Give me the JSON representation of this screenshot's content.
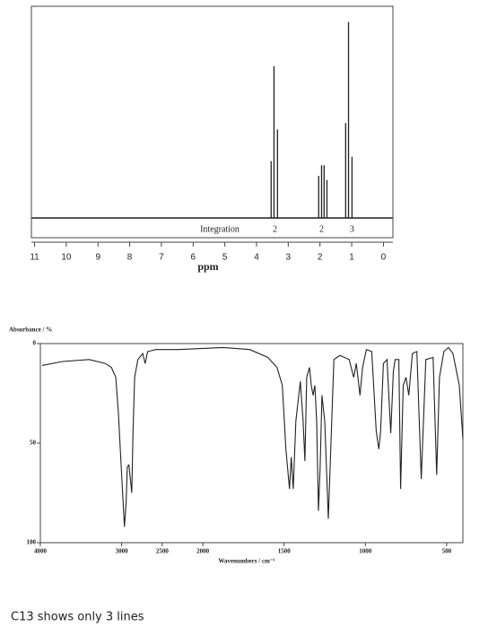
{
  "chart_data": [
    {
      "type": "stick",
      "xlabel": "ppm",
      "integration_label": "Integration",
      "x": [
        3.54,
        3.45,
        3.34,
        2.04,
        1.95,
        1.87,
        1.78,
        1.19,
        1.1,
        0.99
      ],
      "values": [
        27,
        72,
        42,
        20,
        25,
        25,
        18,
        45,
        93,
        29
      ],
      "integrals": [
        {
          "x": 3.42,
          "value": 2
        },
        {
          "x": 1.95,
          "value": 2
        },
        {
          "x": 0.99,
          "value": 3
        }
      ],
      "xlim": [
        11.1,
        -0.3
      ],
      "xticks": [
        11,
        10,
        9,
        8,
        7,
        6,
        5,
        4,
        3,
        2,
        1,
        0
      ],
      "ylim": [
        0,
        100
      ],
      "color": "#222222"
    },
    {
      "type": "line",
      "ylabel": "Absorbance / %",
      "xlabel": "Wavenumbers / cm⁻¹",
      "x": [
        3978,
        3727,
        3399,
        3202,
        3126,
        3071,
        3040,
        3000,
        2965,
        2945,
        2930,
        2910,
        2875,
        2860,
        2840,
        2800,
        2740,
        2710,
        2680,
        2580,
        2300,
        1878,
        1711,
        1600,
        1544,
        1511,
        1489,
        1467,
        1456,
        1444,
        1428,
        1400,
        1383,
        1372,
        1361,
        1344,
        1333,
        1322,
        1311,
        1300,
        1289,
        1278,
        1267,
        1250,
        1228,
        1211,
        1194,
        1156,
        1100,
        1072,
        1056,
        1033,
        1017,
        994,
        961,
        933,
        917,
        906,
        889,
        867,
        844,
        828,
        817,
        794,
        783,
        767,
        750,
        733,
        711,
        683,
        656,
        628,
        583,
        561,
        544,
        517,
        489,
        461,
        422,
        400
      ],
      "values": [
        11,
        9,
        8,
        10,
        12,
        17,
        35,
        66,
        92,
        80,
        62,
        61,
        75,
        44,
        17,
        8,
        5,
        10,
        4,
        3,
        3,
        2,
        3,
        7,
        12,
        21,
        53,
        73,
        57,
        73,
        39,
        19,
        39,
        59,
        17,
        12,
        21,
        26,
        21,
        39,
        84,
        62,
        26,
        39,
        88,
        48,
        8,
        6,
        8,
        17,
        10,
        26,
        12,
        3,
        4,
        44,
        53,
        44,
        10,
        8,
        45,
        14,
        8,
        8,
        73,
        21,
        17,
        26,
        5,
        4,
        68,
        8,
        7,
        66,
        17,
        4,
        2,
        5,
        21,
        48
      ],
      "xlim": [
        4000,
        400
      ],
      "xticks": [
        4000,
        3000,
        2500,
        2000,
        1500,
        1000,
        500
      ],
      "xbreak": 2000,
      "xbreak_ratio": 2,
      "ylim": [
        0,
        100
      ],
      "yticks": [
        0,
        50,
        100
      ],
      "color": "#222222"
    }
  ],
  "caption": "C13 shows only 3 lines"
}
